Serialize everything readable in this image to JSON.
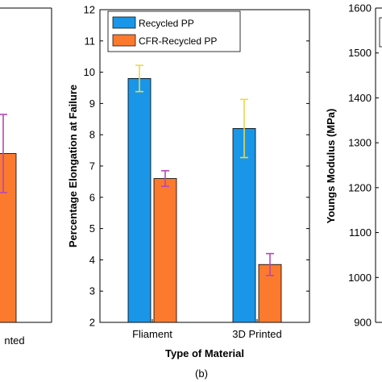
{
  "colors": {
    "series1": "#1a96e8",
    "series2": "#fb7a2e",
    "errbar1": "#ead84b",
    "errbar2": "#b449b6",
    "axis": "#000000"
  },
  "chart_data": [
    {
      "type": "bar",
      "partial": "left edge (panel a, cropped)",
      "series": [
        {
          "name": "",
          "visible_values": [
            7.4
          ],
          "errors": [
            1.25
          ]
        }
      ],
      "tick_fragment": "nted"
    },
    {
      "type": "bar",
      "panel_label": "(b)",
      "title": "",
      "xlabel": "Type of Material",
      "ylabel": "Percentage Elongation at Failure",
      "categories": [
        "Fliament",
        "3D Printed"
      ],
      "ylim": [
        2,
        12
      ],
      "yticks": [
        2,
        3,
        4,
        5,
        6,
        7,
        8,
        9,
        10,
        11,
        12
      ],
      "legend_position": "top-left",
      "grid": false,
      "series": [
        {
          "name": "Recycled PP",
          "values": [
            9.8,
            8.2
          ],
          "errors": [
            0.42,
            0.93
          ]
        },
        {
          "name": "CFR-Recycled PP",
          "values": [
            6.6,
            3.85
          ],
          "errors": [
            0.25,
            0.35
          ]
        }
      ]
    },
    {
      "type": "bar",
      "partial": "right panel (cropped)",
      "ylabel": "Youngs Modulus (MPa)",
      "ylim": [
        900,
        1600
      ],
      "yticks": [
        900,
        1000,
        1100,
        1200,
        1300,
        1400,
        1500,
        1600
      ]
    }
  ]
}
